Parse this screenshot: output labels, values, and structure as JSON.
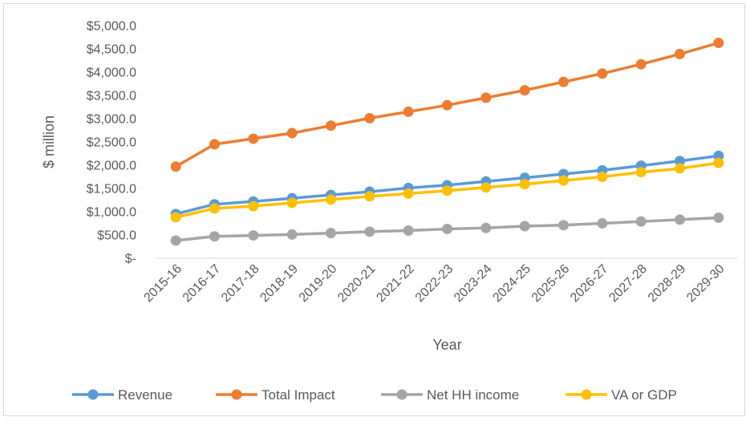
{
  "chart_data": {
    "type": "line",
    "title": "",
    "xlabel": "Year",
    "ylabel": "$ million",
    "ylim": [
      0,
      5000
    ],
    "y_ticks": [
      {
        "value": 0,
        "label": "$-"
      },
      {
        "value": 500,
        "label": "$500.0"
      },
      {
        "value": 1000,
        "label": "$1,000.0"
      },
      {
        "value": 1500,
        "label": "$1,500.0"
      },
      {
        "value": 2000,
        "label": "$2,000.0"
      },
      {
        "value": 2500,
        "label": "$2,500.0"
      },
      {
        "value": 3000,
        "label": "$3,000.0"
      },
      {
        "value": 3500,
        "label": "$3,500.0"
      },
      {
        "value": 4000,
        "label": "$4,000.0"
      },
      {
        "value": 4500,
        "label": "$4,500.0"
      },
      {
        "value": 5000,
        "label": "$5,000.0"
      }
    ],
    "grid": false,
    "legend_position": "bottom",
    "categories": [
      "2015-16",
      "2016-17",
      "2017-18",
      "2018-19",
      "2019-20",
      "2020-21",
      "2021-22",
      "2022-23",
      "2023-24",
      "2024-25",
      "2025-26",
      "2026-27",
      "2027-28",
      "2028-29",
      "2029-30"
    ],
    "series": [
      {
        "name": "Revenue",
        "color": "#5b9bd5",
        "values": [
          950,
          1160,
          1220,
          1290,
          1360,
          1430,
          1510,
          1570,
          1650,
          1730,
          1810,
          1890,
          1990,
          2090,
          2200
        ]
      },
      {
        "name": "Total Impact",
        "color": "#ed7d31",
        "values": [
          1970,
          2450,
          2570,
          2690,
          2850,
          3010,
          3150,
          3290,
          3450,
          3610,
          3790,
          3970,
          4170,
          4390,
          4630
        ]
      },
      {
        "name": "Net HH income",
        "color": "#a5a5a5",
        "values": [
          380,
          470,
          490,
          510,
          540,
          570,
          595,
          630,
          650,
          690,
          710,
          750,
          790,
          830,
          870
        ]
      },
      {
        "name": "VA or GDP",
        "color": "#ffc000",
        "values": [
          880,
          1070,
          1120,
          1190,
          1260,
          1330,
          1390,
          1450,
          1520,
          1590,
          1670,
          1750,
          1850,
          1930,
          2050
        ]
      }
    ]
  }
}
